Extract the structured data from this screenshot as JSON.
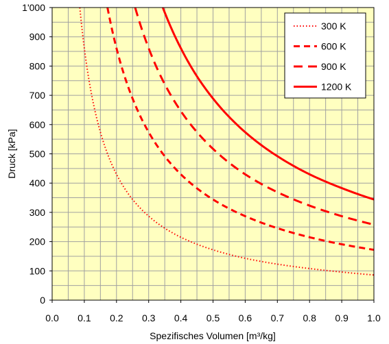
{
  "chart_data": {
    "type": "line",
    "xlabel": "Spezifisches Volumen [m³/kg]",
    "ylabel": "Druck  [kPa]",
    "xlim": [
      0.0,
      1.0
    ],
    "ylim": [
      0,
      1000
    ],
    "x_ticks": [
      0.0,
      0.1,
      0.2,
      0.3,
      0.4,
      0.5,
      0.6,
      0.7,
      0.8,
      0.9,
      1.0
    ],
    "x_tick_labels": [
      "0.0",
      "0.1",
      "0.2",
      "0.3",
      "0.4",
      "0.5",
      "0.6",
      "0.7",
      "0.8",
      "0.9",
      "1.0"
    ],
    "y_ticks": [
      0,
      100,
      200,
      300,
      400,
      500,
      600,
      700,
      800,
      900,
      1000
    ],
    "y_tick_labels": [
      "0",
      "100",
      "200",
      "300",
      "400",
      "500",
      "600",
      "700",
      "800",
      "900",
      "1'000"
    ],
    "grid": true,
    "minor_grid_x_step": 0.05,
    "minor_grid_y_step": 50,
    "plot_background": "#ffffc0",
    "grid_color": "#a0a0a0",
    "line_color": "#ff0000",
    "legend_position": "top-right",
    "series": [
      {
        "name": "300 K",
        "style": "dotted",
        "values": [
          [
            0.086,
            1000
          ],
          [
            0.1,
            861
          ],
          [
            0.15,
            574
          ],
          [
            0.2,
            430
          ],
          [
            0.3,
            287
          ],
          [
            0.4,
            215
          ],
          [
            0.5,
            172
          ],
          [
            0.6,
            143
          ],
          [
            0.7,
            123
          ],
          [
            0.8,
            108
          ],
          [
            0.9,
            96
          ],
          [
            1.0,
            86
          ]
        ]
      },
      {
        "name": "600 K",
        "style": "dashed",
        "values": [
          [
            0.172,
            1000
          ],
          [
            0.2,
            861
          ],
          [
            0.25,
            689
          ],
          [
            0.3,
            574
          ],
          [
            0.4,
            430
          ],
          [
            0.5,
            344
          ],
          [
            0.6,
            287
          ],
          [
            0.7,
            246
          ],
          [
            0.8,
            215
          ],
          [
            0.9,
            191
          ],
          [
            1.0,
            172
          ]
        ]
      },
      {
        "name": "900 K",
        "style": "long-dashed",
        "values": [
          [
            0.258,
            1000
          ],
          [
            0.3,
            861
          ],
          [
            0.35,
            738
          ],
          [
            0.4,
            646
          ],
          [
            0.5,
            517
          ],
          [
            0.6,
            430
          ],
          [
            0.7,
            369
          ],
          [
            0.8,
            323
          ],
          [
            0.9,
            287
          ],
          [
            1.0,
            258
          ]
        ]
      },
      {
        "name": "1200 K",
        "style": "solid",
        "values": [
          [
            0.344,
            1000
          ],
          [
            0.4,
            861
          ],
          [
            0.45,
            765
          ],
          [
            0.5,
            689
          ],
          [
            0.6,
            574
          ],
          [
            0.7,
            492
          ],
          [
            0.8,
            430
          ],
          [
            0.9,
            383
          ],
          [
            1.0,
            344
          ]
        ]
      }
    ]
  }
}
